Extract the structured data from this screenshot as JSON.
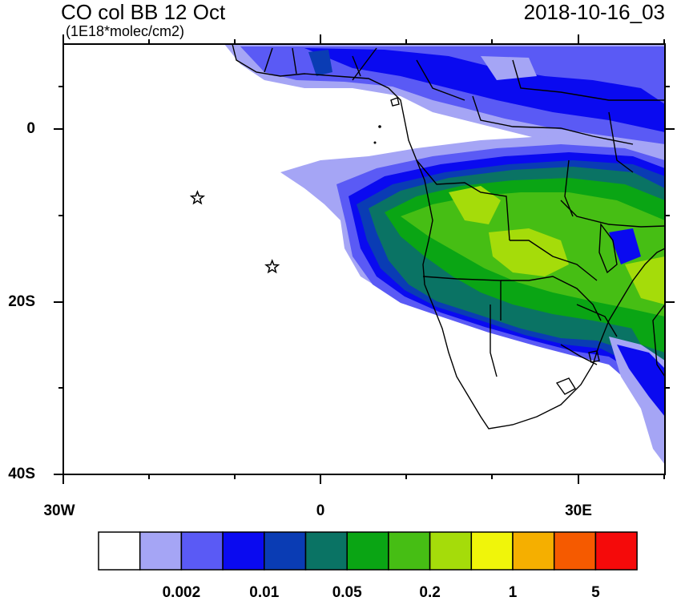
{
  "header": {
    "title": "CO col BB 12 Oct",
    "units": "(1E18*molec/cm2)",
    "datetime": "2018-10-16_03"
  },
  "axes": {
    "lat_labels": [
      {
        "label": "0",
        "lat": 0
      },
      {
        "label": "20S",
        "lat": -20
      },
      {
        "label": "40S",
        "lat": -40
      }
    ],
    "lon_labels": [
      {
        "label": "30W",
        "lon": -30
      },
      {
        "label": "0",
        "lon": 0
      },
      {
        "label": "30E",
        "lon": 30
      }
    ],
    "lon_range": [
      -30,
      40
    ],
    "lat_range": [
      -40,
      10
    ]
  },
  "markers": [
    {
      "name": "star",
      "lon": -14.4,
      "lat": -7.9
    },
    {
      "name": "star",
      "lon": -5.7,
      "lat": -15.9
    }
  ],
  "colorbar": {
    "colors": [
      "#ffffff",
      "#a5a5f5",
      "#5a5af5",
      "#0a0af0",
      "#0a3cb4",
      "#0a7364",
      "#0aa514",
      "#46be14",
      "#a5dc0a",
      "#f0f50a",
      "#f5af00",
      "#f55a00",
      "#f50a0a"
    ],
    "labels": [
      {
        "label": "0.002",
        "after_box": 2
      },
      {
        "label": "0.01",
        "after_box": 4
      },
      {
        "label": "0.05",
        "after_box": 6
      },
      {
        "label": "0.2",
        "after_box": 8
      },
      {
        "label": "1",
        "after_box": 10
      },
      {
        "label": "5",
        "after_box": 12
      }
    ]
  }
}
